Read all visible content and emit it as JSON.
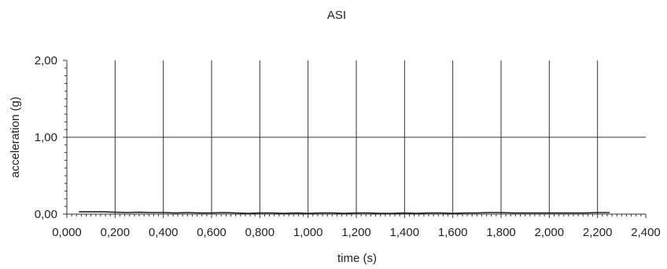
{
  "chart_data": {
    "type": "line",
    "title": "ASI",
    "xlabel": "time (s)",
    "ylabel": "acceleration (g)",
    "xlim": [
      0.0,
      2.4
    ],
    "ylim": [
      0.0,
      2.0
    ],
    "x_ticks": [
      "0,000",
      "0,200",
      "0,400",
      "0,600",
      "0,800",
      "1,000",
      "1,200",
      "1,400",
      "1,600",
      "1,800",
      "2,000",
      "2,200",
      "2,400"
    ],
    "y_ticks": [
      "0,00",
      "1,00",
      "2,00"
    ],
    "grid": true,
    "series": [
      {
        "color": "#222222",
        "x": [
          0.05,
          0.1,
          0.15,
          0.2,
          0.25,
          0.3,
          0.35,
          0.4,
          0.45,
          0.5,
          0.55,
          0.6,
          0.65,
          0.7,
          0.75,
          0.8,
          0.85,
          0.9,
          0.95,
          1.0,
          1.05,
          1.1,
          1.15,
          1.2,
          1.25,
          1.3,
          1.35,
          1.4,
          1.45,
          1.5,
          1.55,
          1.6,
          1.65,
          1.7,
          1.75,
          1.8,
          1.85,
          1.9,
          1.95,
          2.0,
          2.05,
          2.1,
          2.15,
          2.2,
          2.25
        ],
        "values": [
          0.03,
          0.03,
          0.03,
          0.025,
          0.02,
          0.025,
          0.02,
          0.02,
          0.015,
          0.02,
          0.015,
          0.015,
          0.02,
          0.015,
          0.01,
          0.015,
          0.015,
          0.01,
          0.015,
          0.01,
          0.015,
          0.015,
          0.01,
          0.015,
          0.015,
          0.01,
          0.01,
          0.015,
          0.01,
          0.015,
          0.015,
          0.01,
          0.015,
          0.015,
          0.02,
          0.02,
          0.015,
          0.015,
          0.015,
          0.015,
          0.015,
          0.015,
          0.015,
          0.02,
          0.02
        ]
      }
    ]
  }
}
